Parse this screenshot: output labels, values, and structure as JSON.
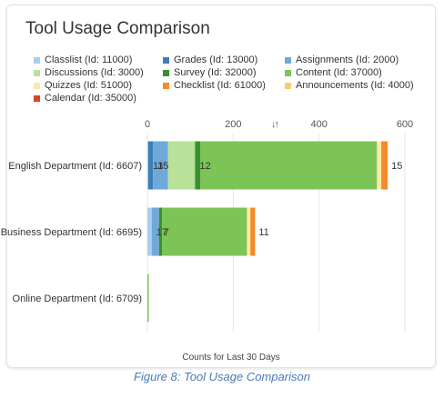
{
  "card": {
    "title": "Tool Usage Comparison",
    "sort_icon": "sort-arrows-icon",
    "sort_glyph": "↓↑"
  },
  "caption": "Figure 8: Tool Usage Comparison",
  "chart_data": {
    "type": "bar",
    "orientation": "horizontal",
    "stacked": true,
    "title": "Tool Usage Comparison",
    "xlabel": "Counts for Last 30 Days",
    "ylabel": "",
    "xlim": [
      0,
      600
    ],
    "xticks": [
      0,
      200,
      400,
      600
    ],
    "grid": true,
    "legend_position": "top",
    "categories": [
      "English Department (Id: 6607)",
      "Business Department (Id: 6695)",
      "Online Department (Id: 6709)"
    ],
    "series": [
      {
        "name": "Classlist (Id: 11000)",
        "color": "#a9cfee",
        "values": [
          2,
          10,
          0
        ]
      },
      {
        "name": "Grades (Id: 13000)",
        "color": "#3c7fb7",
        "values": [
          11,
          0,
          0
        ]
      },
      {
        "name": "Assignments (Id: 2000)",
        "color": "#6fa9da",
        "values": [
          35,
          17,
          0
        ]
      },
      {
        "name": "Discussions (Id: 3000)",
        "color": "#b8e29a",
        "values": [
          63,
          0,
          0
        ]
      },
      {
        "name": "Survey (Id: 32000)",
        "color": "#3b8f2e",
        "values": [
          12,
          7,
          0
        ]
      },
      {
        "name": "Content (Id: 37000)",
        "color": "#7cc456",
        "values": [
          412,
          198,
          2
        ]
      },
      {
        "name": "Quizzes (Id: 51000)",
        "color": "#fde8a8",
        "values": [
          10,
          8,
          0
        ]
      },
      {
        "name": "Checklist (Id: 61000)",
        "color": "#f58a26",
        "values": [
          15,
          11,
          0
        ]
      },
      {
        "name": "Announcements (Id: 4000)",
        "color": "#f9cc7a",
        "values": [
          0,
          0,
          0
        ]
      },
      {
        "name": "Calendar (Id: 35000)",
        "color": "#d9461e",
        "values": [
          0,
          0,
          0
        ]
      }
    ],
    "data_labels": [
      {
        "category": 0,
        "series": 1,
        "text": "11"
      },
      {
        "category": 0,
        "series": 2,
        "text": "35"
      },
      {
        "category": 0,
        "series": 4,
        "text": "12"
      },
      {
        "category": 0,
        "series": 7,
        "text": "15"
      },
      {
        "category": 1,
        "series": 2,
        "text": "17"
      },
      {
        "category": 1,
        "series": 4,
        "text": "7"
      },
      {
        "category": 1,
        "series": 7,
        "text": "11"
      }
    ]
  }
}
